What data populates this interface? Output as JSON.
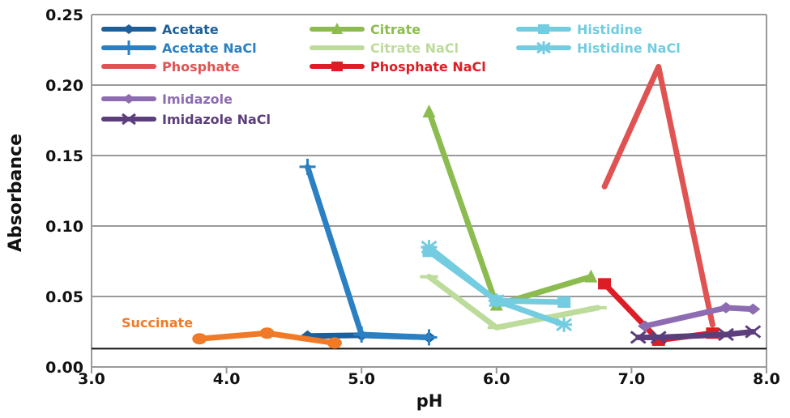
{
  "chart_data": {
    "type": "line",
    "xlabel": "pH",
    "ylabel": "Absorbance",
    "xlim": [
      3.0,
      8.0
    ],
    "ylim": [
      0.0,
      0.25
    ],
    "x_ticks": [
      "3.0",
      "4.0",
      "5.0",
      "6.0",
      "7.0",
      "8.0"
    ],
    "y_ticks": [
      "0.00",
      "0.05",
      "0.10",
      "0.15",
      "0.20",
      "0.25"
    ],
    "grid": "horizontal",
    "legend_position": "top-left",
    "reference_line_y": 0.013,
    "series": [
      {
        "name": "Acetate",
        "color": "#1d5f99",
        "marker": "diamond",
        "x": [
          4.6,
          5.0,
          5.5
        ],
        "y": [
          0.022,
          0.0225,
          0.021
        ]
      },
      {
        "name": "Acetate NaCl",
        "color": "#2a80c2",
        "marker": "plus",
        "x": [
          4.6,
          5.0,
          5.5
        ],
        "y": [
          0.142,
          0.023,
          0.021
        ]
      },
      {
        "name": "Citrate",
        "color": "#8cbc4f",
        "marker": "triangle",
        "x": [
          5.5,
          6.0,
          6.7
        ],
        "y": [
          0.181,
          0.044,
          0.064
        ]
      },
      {
        "name": "Citrate NaCl",
        "color": "#bddc9b",
        "marker": "dash",
        "x": [
          5.5,
          6.0,
          6.75
        ],
        "y": [
          0.064,
          0.028,
          0.042
        ]
      },
      {
        "name": "Histidine",
        "color": "#73cce0",
        "marker": "square",
        "x": [
          5.5,
          6.0,
          6.5
        ],
        "y": [
          0.082,
          0.047,
          0.046
        ]
      },
      {
        "name": "Histidine NaCl",
        "color": "#73cce0",
        "marker": "asterisk",
        "x": [
          5.5,
          6.0,
          6.5
        ],
        "y": [
          0.085,
          0.047,
          0.03
        ]
      },
      {
        "name": "Phosphate",
        "color": "#e05353",
        "marker": "none",
        "x": [
          6.8,
          7.2,
          7.6
        ],
        "y": [
          0.128,
          0.213,
          0.03
        ]
      },
      {
        "name": "Phosphate NaCl",
        "color": "#dd1d25",
        "marker": "square",
        "x": [
          6.8,
          7.2,
          7.6
        ],
        "y": [
          0.059,
          0.019,
          0.024
        ]
      },
      {
        "name": "Imidazole",
        "color": "#8e6cb1",
        "marker": "diamond",
        "x": [
          7.1,
          7.7,
          7.9
        ],
        "y": [
          0.029,
          0.042,
          0.041
        ]
      },
      {
        "name": "Imidazole NaCl",
        "color": "#5b3e7b",
        "marker": "x",
        "x": [
          7.05,
          7.2,
          7.7,
          7.9
        ],
        "y": [
          0.021,
          0.021,
          0.023,
          0.025
        ]
      },
      {
        "name": "Succinate",
        "color": "#f07a28",
        "marker": "circle",
        "x": [
          3.8,
          4.3,
          4.8
        ],
        "y": [
          0.02,
          0.024,
          0.017
        ]
      }
    ],
    "annotations": [
      {
        "text": "Succinate",
        "color": "#f07a28"
      }
    ]
  }
}
